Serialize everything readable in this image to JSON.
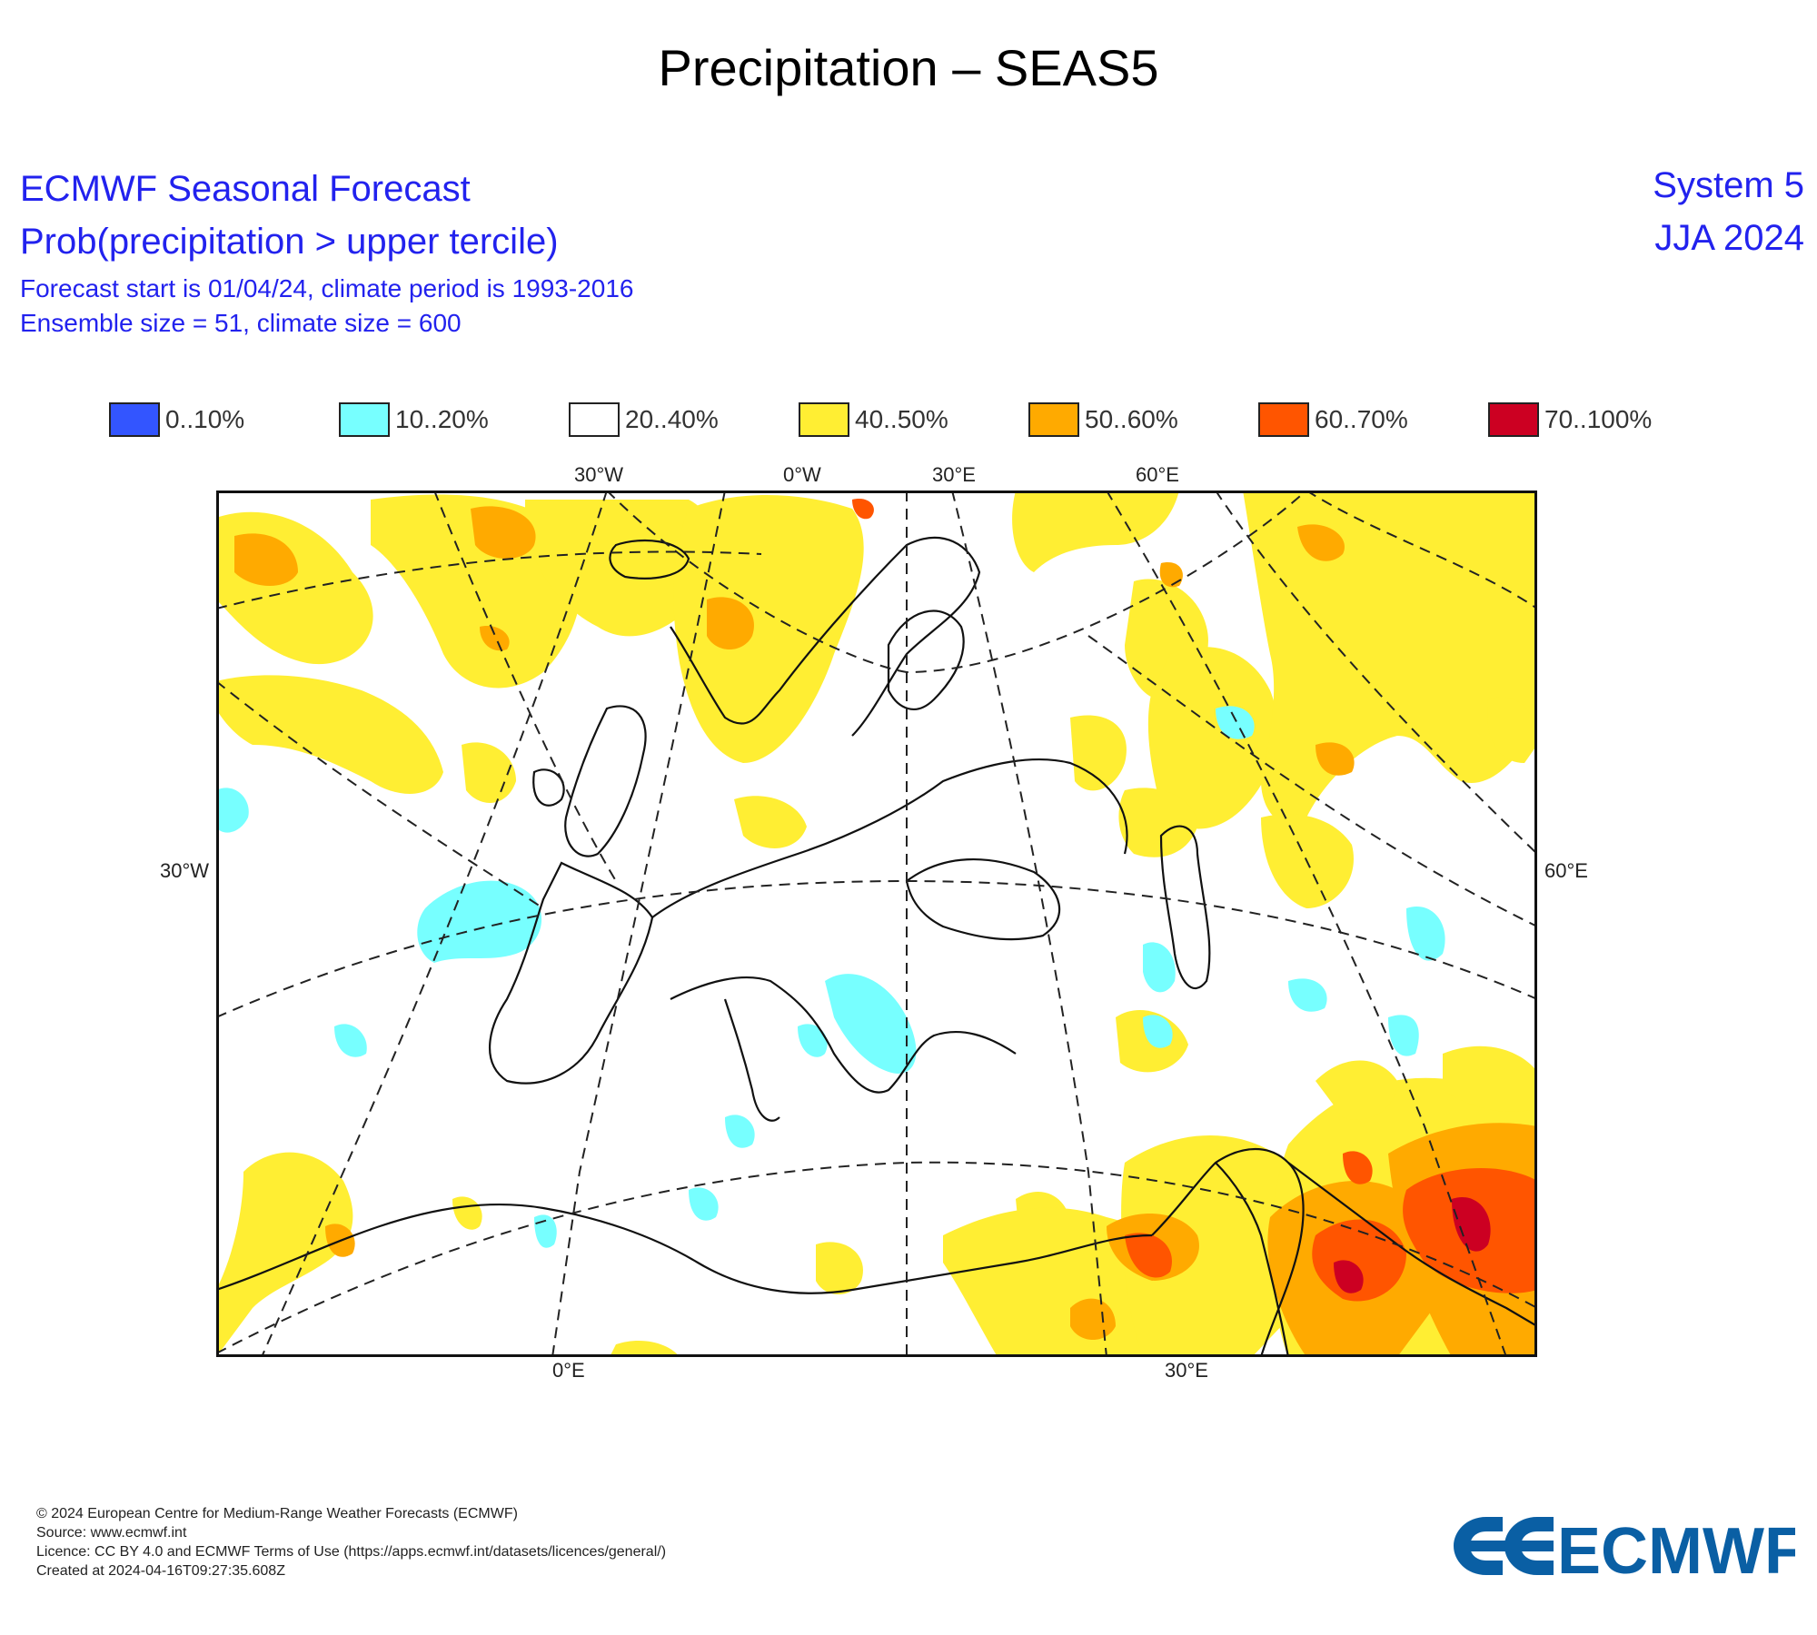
{
  "page": {
    "title": "Precipitation – SEAS5"
  },
  "header": {
    "line1": "ECMWF Seasonal Forecast",
    "line2": "Prob(precipitation > upper tercile)",
    "line3": "Forecast start is 01/04/24, climate period is 1993-2016",
    "line4": "Ensemble size = 51, climate size = 600",
    "system": "System 5",
    "season": "JJA 2024"
  },
  "legend": [
    {
      "label": "0..10%",
      "color": "#3355ff"
    },
    {
      "label": "10..20%",
      "color": "#77ffff"
    },
    {
      "label": "20..40%",
      "color": "#ffffff"
    },
    {
      "label": "40..50%",
      "color": "#ffee33"
    },
    {
      "label": "50..60%",
      "color": "#ffaa00"
    },
    {
      "label": "60..70%",
      "color": "#ff5500"
    },
    {
      "label": "70..100%",
      "color": "#cc0022"
    }
  ],
  "map": {
    "region": "Europe",
    "top_labels": [
      "30°W",
      "0°W",
      "30°E",
      "60°E"
    ],
    "left_label": "30°W",
    "right_label": "60°E",
    "bottom_labels": [
      "0°E",
      "30°E"
    ]
  },
  "footer": {
    "copyright": "© 2024 European Centre for Medium-Range Weather Forecasts (ECMWF)",
    "source": "Source: www.ecmwf.int",
    "licence": "Licence: CC BY 4.0 and ECMWF Terms of Use (https://apps.ecmwf.int/datasets/licences/general/)",
    "created": "Created at 2024-04-16T09:27:35.608Z"
  },
  "logo": {
    "text": "ECMWF",
    "color": "#0a5fa4"
  }
}
